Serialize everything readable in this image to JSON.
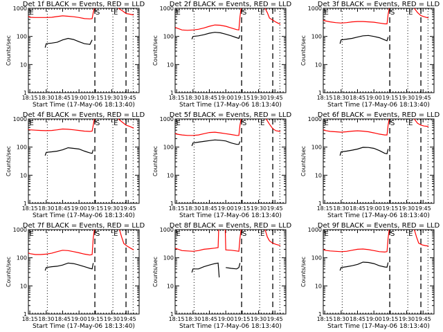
{
  "chart_data": {
    "type": "line",
    "layout": "3x3 grid",
    "shared": {
      "xlabel": "Start Time (17-May-06 18:13:40)",
      "ylabel": "Counts/sec",
      "yscale": "log",
      "ylim": [
        1,
        1000
      ],
      "ytick_labels": [
        "1",
        "10",
        "100",
        "1000"
      ],
      "ytick_values": [
        1,
        10,
        100,
        1000
      ],
      "xlim_minutes_after_1800": [
        13.67,
        115
      ],
      "xtick_labels": [
        "18:15",
        "18:30",
        "18:45",
        "19:00",
        "19:15",
        "19:30",
        "19:45"
      ],
      "xtick_minutes_after_1800": [
        15,
        30,
        45,
        60,
        75,
        90,
        105
      ],
      "series_colors": {
        "events": "#000000",
        "lld": "#ff0000"
      },
      "markers": [
        {
          "label": "E",
          "minute": 14,
          "style": "none"
        },
        {
          "label": "",
          "minute": 31,
          "style": "dotted"
        },
        {
          "label": "S",
          "minute": 74.5,
          "style": "dashed"
        },
        {
          "label": "E",
          "minute": 91,
          "style": "dotted"
        },
        {
          "label": "",
          "minute": 103,
          "style": "dashed"
        },
        {
          "label": "",
          "minute": 109.5,
          "style": "dotted"
        }
      ]
    },
    "panels": [
      {
        "title": "Det 1f BLACK = Events, RED = LLD",
        "events": {
          "x": [
            29,
            30,
            35,
            40,
            45,
            50,
            55,
            60,
            65,
            70,
            72
          ],
          "y": [
            40,
            55,
            58,
            62,
            75,
            85,
            78,
            65,
            55,
            52,
            75
          ]
        },
        "lld": {
          "x": [
            13.67,
            15,
            20,
            25,
            30,
            35,
            40,
            45,
            50,
            55,
            60,
            65,
            70,
            72,
            73,
            74
          ],
          "y": [
            520,
            480,
            470,
            470,
            470,
            480,
            510,
            540,
            520,
            500,
            470,
            430,
            420,
            430,
            700,
            1000
          ]
        },
        "lld_after": {
          "x": [
            96,
            100,
            103,
            106,
            110
          ],
          "y": [
            1000,
            800,
            650,
            620,
            580
          ]
        }
      },
      {
        "title": "Det 2f BLACK = Events, RED = LLD",
        "events": {
          "x": [
            29,
            30,
            35,
            40,
            45,
            50,
            55,
            60,
            65,
            70,
            72,
            73
          ],
          "y": [
            80,
            100,
            105,
            115,
            130,
            140,
            135,
            120,
            105,
            90,
            85,
            110
          ]
        },
        "lld": {
          "x": [
            13.67,
            15,
            20,
            25,
            30,
            35,
            40,
            45,
            50,
            55,
            60,
            65,
            70,
            72,
            73,
            74
          ],
          "y": [
            210,
            200,
            170,
            165,
            170,
            180,
            200,
            230,
            255,
            250,
            230,
            200,
            175,
            170,
            500,
            1000
          ]
        },
        "lld_after": {
          "x": [
            96,
            98,
            100,
            103,
            106,
            110
          ],
          "y": [
            1000,
            700,
            450,
            380,
            320,
            270
          ]
        }
      },
      {
        "title": "Det 3f BLACK = Events, RED = LLD",
        "events": {
          "x": [
            29,
            30,
            35,
            40,
            45,
            50,
            55,
            60,
            65,
            70,
            72,
            73
          ],
          "y": [
            55,
            75,
            80,
            85,
            95,
            105,
            108,
            100,
            90,
            75,
            70,
            95
          ]
        },
        "lld": {
          "x": [
            13.67,
            15,
            20,
            25,
            30,
            35,
            40,
            45,
            50,
            55,
            60,
            65,
            70,
            72,
            73,
            74
          ],
          "y": [
            380,
            360,
            330,
            310,
            300,
            310,
            330,
            340,
            340,
            330,
            320,
            300,
            280,
            280,
            600,
            1000
          ]
        },
        "lld_after": {
          "x": [
            97,
            100,
            103,
            106,
            110
          ],
          "y": [
            1000,
            700,
            550,
            500,
            450
          ]
        }
      },
      {
        "title": "Det 4f BLACK = Events, RED = LLD",
        "events": {
          "x": [
            29,
            30,
            35,
            40,
            45,
            50,
            55,
            60,
            65,
            70,
            72,
            73
          ],
          "y": [
            50,
            65,
            68,
            72,
            80,
            95,
            90,
            85,
            72,
            62,
            60,
            80
          ]
        },
        "lld": {
          "x": [
            13.67,
            15,
            20,
            25,
            30,
            35,
            40,
            45,
            50,
            55,
            60,
            65,
            70,
            72,
            73,
            74
          ],
          "y": [
            420,
            410,
            400,
            390,
            385,
            390,
            410,
            440,
            430,
            410,
            390,
            370,
            360,
            370,
            600,
            1000
          ]
        },
        "lld_after": {
          "x": [
            96,
            100,
            103,
            106,
            110
          ],
          "y": [
            1000,
            750,
            600,
            550,
            470
          ]
        }
      },
      {
        "title": "Det 5f BLACK = Events, RED = LLD",
        "events": {
          "x": [
            29,
            30,
            35,
            40,
            45,
            50,
            55,
            60,
            65,
            70,
            72,
            73
          ],
          "y": [
            110,
            140,
            150,
            160,
            170,
            180,
            175,
            165,
            140,
            125,
            125,
            160
          ]
        },
        "lld": {
          "x": [
            13.67,
            15,
            20,
            25,
            30,
            35,
            40,
            45,
            50,
            55,
            60,
            65,
            70,
            72,
            73,
            74
          ],
          "y": [
            310,
            290,
            270,
            260,
            260,
            270,
            300,
            330,
            340,
            320,
            300,
            280,
            260,
            260,
            600,
            1000
          ]
        },
        "lld_after": {
          "x": [
            97,
            100,
            103,
            106,
            110
          ],
          "y": [
            1000,
            650,
            450,
            380,
            360
          ]
        }
      },
      {
        "title": "Det 6f BLACK = Events, RED = LLD",
        "events": {
          "x": [
            29,
            30,
            35,
            40,
            45,
            50,
            55,
            60,
            65,
            70,
            72,
            73
          ],
          "y": [
            50,
            68,
            72,
            78,
            85,
            98,
            97,
            90,
            75,
            60,
            58,
            85
          ]
        },
        "lld": {
          "x": [
            13.67,
            15,
            20,
            25,
            30,
            35,
            40,
            45,
            50,
            55,
            60,
            65,
            70,
            72,
            73,
            74
          ],
          "y": [
            420,
            390,
            360,
            350,
            340,
            350,
            370,
            380,
            370,
            350,
            320,
            290,
            270,
            270,
            600,
            1000
          ]
        },
        "lld_after": {
          "x": [
            97,
            100,
            103,
            106,
            110
          ],
          "y": [
            1000,
            700,
            600,
            560,
            540
          ]
        }
      },
      {
        "title": "Det 7f BLACK = Events, RED = LLD",
        "events": {
          "x": [
            29,
            30,
            35,
            40,
            45,
            50,
            55,
            60,
            65,
            70,
            72,
            73
          ],
          "y": [
            35,
            45,
            48,
            50,
            55,
            65,
            62,
            55,
            48,
            42,
            40,
            65
          ]
        },
        "lld": {
          "x": [
            13.67,
            15,
            20,
            25,
            30,
            35,
            40,
            45,
            50,
            55,
            60,
            65,
            70,
            72,
            73,
            74
          ],
          "y": [
            150,
            140,
            130,
            130,
            135,
            145,
            165,
            185,
            180,
            165,
            150,
            135,
            125,
            130,
            500,
            1000
          ]
        },
        "lld_after": {
          "x": [
            97,
            99,
            101,
            104,
            107,
            110
          ],
          "y": [
            1000,
            550,
            320,
            260,
            220,
            190
          ]
        }
      },
      {
        "title": "Det 8f BLACK = Events, RED = LLD",
        "events_segments": [
          {
            "x": [
              29,
              30,
              35,
              40,
              45,
              50,
              53,
              54
            ],
            "y": [
              30,
              40,
              40,
              48,
              55,
              62,
              65,
              20
            ]
          },
          {
            "x": [
              60,
              65,
              70,
              72,
              73
            ],
            "y": [
              45,
              42,
              40,
              45,
              65
            ]
          }
        ],
        "lld_segments": [
          {
            "x": [
              13.67,
              15,
              20,
              25,
              30,
              35,
              40,
              45,
              50,
              53,
              53.5
            ],
            "y": [
              220,
              210,
              180,
              175,
              170,
              180,
              200,
              210,
              220,
              230,
              1000
            ]
          },
          {
            "x": [
              59.5,
              60,
              65,
              70,
              72,
              73,
              74
            ],
            "y": [
              1000,
              190,
              185,
              175,
              170,
              500,
              1000
            ]
          }
        ],
        "lld_after": {
          "x": [
            96,
            98,
            100,
            103,
            106,
            110
          ],
          "y": [
            1000,
            550,
            400,
            330,
            300,
            270
          ]
        }
      },
      {
        "title": "Det 9f BLACK = Events, RED = LLD",
        "events": {
          "x": [
            29,
            30,
            35,
            40,
            45,
            50,
            55,
            60,
            65,
            70,
            72,
            73
          ],
          "y": [
            35,
            45,
            48,
            52,
            58,
            70,
            68,
            62,
            52,
            47,
            46,
            68
          ]
        },
        "lld": {
          "x": [
            13.67,
            15,
            20,
            25,
            30,
            35,
            40,
            45,
            50,
            55,
            60,
            65,
            70,
            72,
            73,
            74
          ],
          "y": [
            200,
            185,
            175,
            170,
            165,
            170,
            185,
            200,
            205,
            195,
            180,
            165,
            160,
            165,
            500,
            1000
          ]
        },
        "lld_after": {
          "x": [
            97,
            99,
            101,
            104,
            107,
            110
          ],
          "y": [
            1000,
            550,
            330,
            290,
            270,
            260
          ]
        }
      }
    ]
  }
}
